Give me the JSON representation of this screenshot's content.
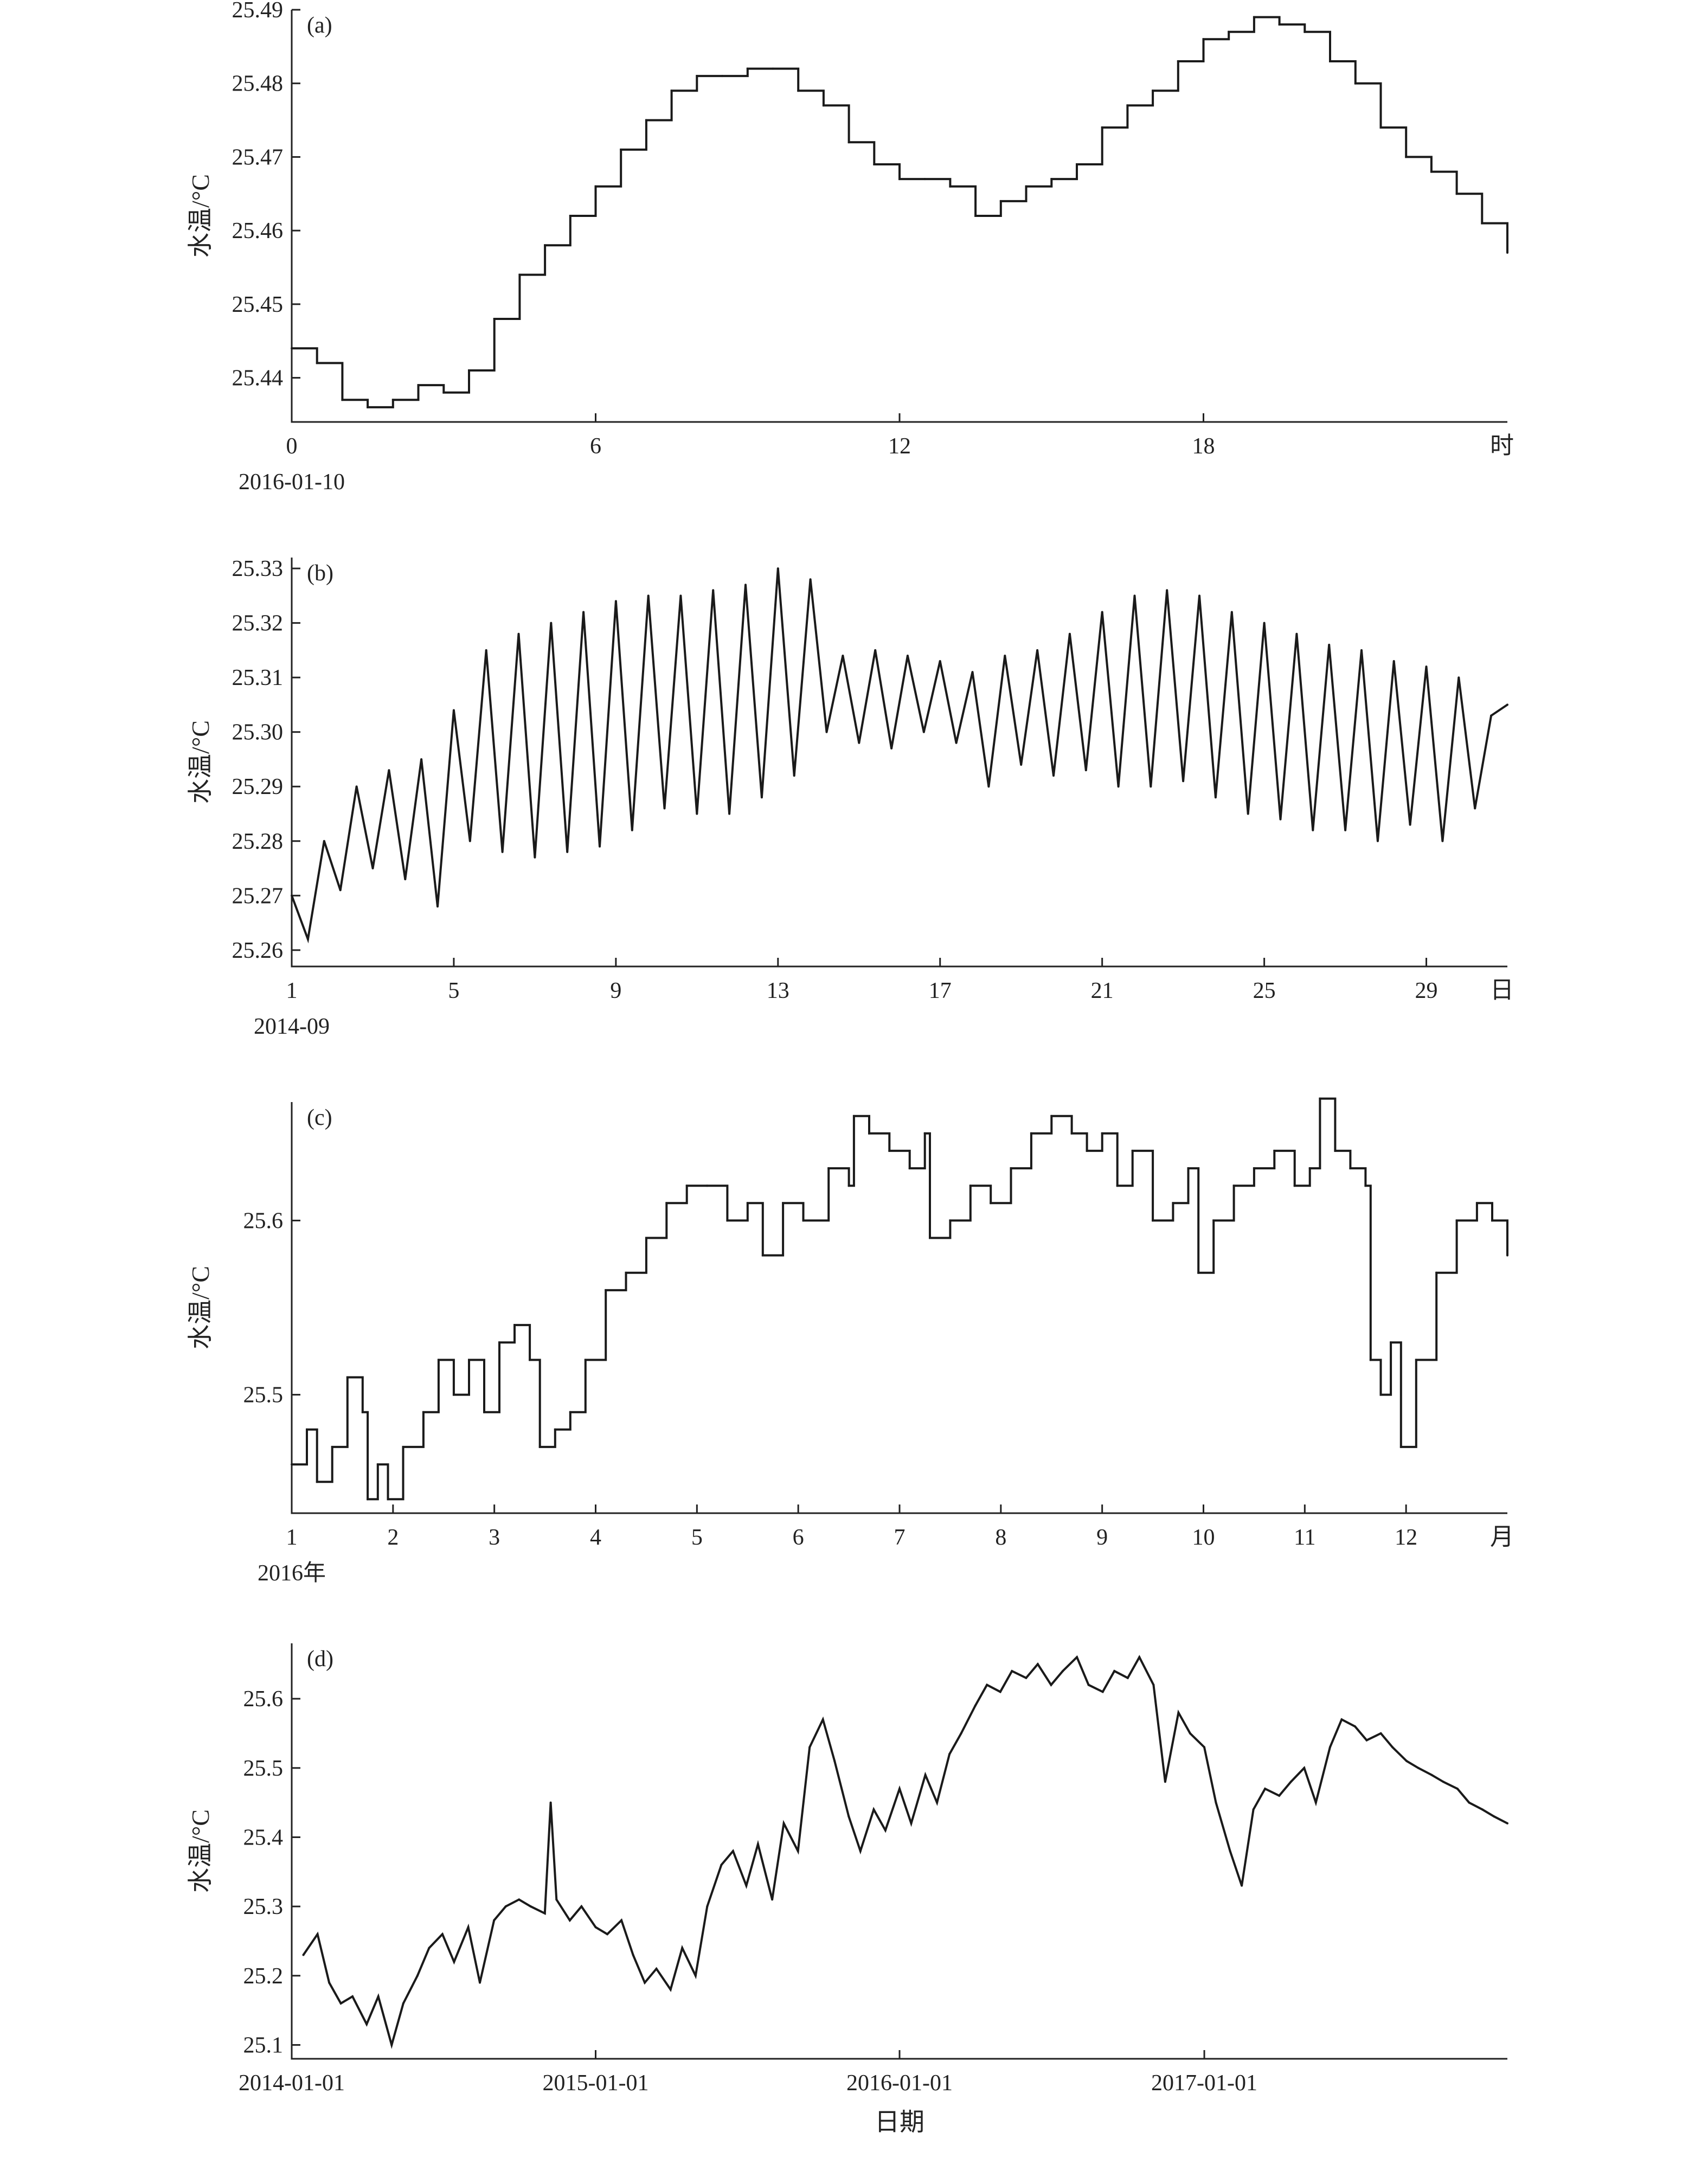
{
  "chart_data": [
    {
      "type": "line",
      "panel_label": "(a)",
      "ylabel": "水温/°C",
      "xunit_label": "时",
      "xsub_label": "2016-01-10",
      "xlim": [
        0,
        24
      ],
      "ylim": [
        25.434,
        25.49
      ],
      "xticks": [
        0,
        6,
        12,
        18
      ],
      "xtick_labels": [
        "0",
        "6",
        "12",
        "18"
      ],
      "yticks": [
        25.44,
        25.45,
        25.46,
        25.47,
        25.48,
        25.49
      ],
      "ytick_labels": [
        "25.44",
        "25.45",
        "25.46",
        "25.47",
        "25.48",
        "25.49"
      ],
      "step": true,
      "x": [
        0,
        0.5,
        1,
        1.5,
        2,
        2.5,
        3,
        3.5,
        4,
        4.5,
        5,
        5.5,
        6,
        6.5,
        7,
        7.5,
        8,
        8.5,
        9,
        9.5,
        10,
        10.5,
        11,
        11.5,
        12,
        12.5,
        13,
        13.5,
        14,
        14.5,
        15,
        15.5,
        16,
        16.5,
        17,
        17.5,
        18,
        18.5,
        19,
        19.5,
        20,
        20.5,
        21,
        21.5,
        22,
        22.5,
        23,
        23.5,
        24
      ],
      "y": [
        25.444,
        25.442,
        25.437,
        25.436,
        25.437,
        25.439,
        25.438,
        25.441,
        25.448,
        25.454,
        25.458,
        25.462,
        25.466,
        25.471,
        25.475,
        25.479,
        25.481,
        25.481,
        25.482,
        25.482,
        25.479,
        25.477,
        25.472,
        25.469,
        25.467,
        25.467,
        25.466,
        25.462,
        25.464,
        25.466,
        25.467,
        25.469,
        25.474,
        25.477,
        25.479,
        25.483,
        25.486,
        25.487,
        25.489,
        25.488,
        25.487,
        25.483,
        25.48,
        25.474,
        25.47,
        25.468,
        25.465,
        25.461,
        25.457
      ]
    },
    {
      "type": "line",
      "panel_label": "(b)",
      "ylabel": "水温/°C",
      "xunit_label": "日",
      "xsub_label": "2014-09",
      "xlim": [
        1,
        31
      ],
      "ylim": [
        25.257,
        25.332
      ],
      "xticks": [
        1,
        5,
        9,
        13,
        17,
        21,
        25,
        29
      ],
      "xtick_labels": [
        "1",
        "5",
        "9",
        "13",
        "17",
        "21",
        "25",
        "29"
      ],
      "yticks": [
        25.26,
        25.27,
        25.28,
        25.29,
        25.3,
        25.31,
        25.32,
        25.33
      ],
      "ytick_labels": [
        "25.26",
        "25.27",
        "25.28",
        "25.29",
        "25.30",
        "25.31",
        "25.32",
        "25.33"
      ],
      "step": false,
      "x": [
        1.0,
        1.4,
        1.8,
        2.2,
        2.6,
        3.0,
        3.4,
        3.8,
        4.2,
        4.6,
        5.0,
        5.4,
        5.8,
        6.2,
        6.6,
        7.0,
        7.4,
        7.8,
        8.2,
        8.6,
        9.0,
        9.4,
        9.8,
        10.2,
        10.6,
        11.0,
        11.4,
        11.8,
        12.2,
        12.6,
        13.0,
        13.4,
        13.8,
        14.2,
        14.6,
        15.0,
        15.4,
        15.8,
        16.2,
        16.6,
        17.0,
        17.4,
        17.8,
        18.2,
        18.6,
        19.0,
        19.4,
        19.8,
        20.2,
        20.6,
        21.0,
        21.4,
        21.8,
        22.2,
        22.6,
        23.0,
        23.4,
        23.8,
        24.2,
        24.6,
        25.0,
        25.4,
        25.8,
        26.2,
        26.6,
        27.0,
        27.4,
        27.8,
        28.2,
        28.6,
        29.0,
        29.4,
        29.8,
        30.2,
        30.6,
        31.0
      ],
      "y": [
        25.27,
        25.262,
        25.28,
        25.271,
        25.29,
        25.275,
        25.293,
        25.273,
        25.295,
        25.268,
        25.304,
        25.28,
        25.315,
        25.278,
        25.318,
        25.277,
        25.32,
        25.278,
        25.322,
        25.279,
        25.324,
        25.282,
        25.325,
        25.286,
        25.325,
        25.285,
        25.326,
        25.285,
        25.327,
        25.288,
        25.33,
        25.292,
        25.328,
        25.3,
        25.314,
        25.298,
        25.315,
        25.297,
        25.314,
        25.3,
        25.313,
        25.298,
        25.311,
        25.29,
        25.314,
        25.294,
        25.315,
        25.292,
        25.318,
        25.293,
        25.322,
        25.29,
        25.325,
        25.29,
        25.326,
        25.291,
        25.325,
        25.288,
        25.322,
        25.285,
        25.32,
        25.284,
        25.318,
        25.282,
        25.316,
        25.282,
        25.315,
        25.28,
        25.313,
        25.283,
        25.312,
        25.28,
        25.31,
        25.286,
        25.303,
        25.305
      ]
    },
    {
      "type": "line",
      "panel_label": "(c)",
      "ylabel": "水温/°C",
      "xunit_label": "月",
      "xsub_label": "2016年",
      "xlim": [
        1,
        13
      ],
      "ylim": [
        25.432,
        25.668
      ],
      "xticks": [
        1,
        2,
        3,
        4,
        5,
        6,
        7,
        8,
        9,
        10,
        11,
        12
      ],
      "xtick_labels": [
        "1",
        "2",
        "3",
        "4",
        "5",
        "6",
        "7",
        "8",
        "9",
        "10",
        "11",
        "12"
      ],
      "yticks": [
        25.5,
        25.6
      ],
      "ytick_labels": [
        "25.5",
        "25.6"
      ],
      "step": true,
      "x": [
        1.0,
        1.15,
        1.25,
        1.4,
        1.55,
        1.7,
        1.75,
        1.85,
        1.95,
        2.1,
        2.3,
        2.45,
        2.6,
        2.75,
        2.9,
        3.05,
        3.2,
        3.35,
        3.45,
        3.6,
        3.75,
        3.9,
        4.1,
        4.3,
        4.5,
        4.7,
        4.9,
        5.1,
        5.3,
        5.5,
        5.65,
        5.85,
        6.05,
        6.3,
        6.5,
        6.55,
        6.7,
        6.9,
        7.1,
        7.25,
        7.3,
        7.5,
        7.7,
        7.9,
        8.1,
        8.3,
        8.5,
        8.7,
        8.85,
        9.0,
        9.15,
        9.3,
        9.5,
        9.7,
        9.85,
        9.95,
        10.1,
        10.3,
        10.5,
        10.7,
        10.9,
        11.05,
        11.15,
        11.3,
        11.45,
        11.6,
        11.65,
        11.75,
        11.85,
        11.95,
        12.1,
        12.3,
        12.5,
        12.7,
        12.85,
        13.0
      ],
      "y": [
        25.46,
        25.48,
        25.45,
        25.47,
        25.51,
        25.49,
        25.44,
        25.46,
        25.44,
        25.47,
        25.49,
        25.52,
        25.5,
        25.52,
        25.49,
        25.53,
        25.54,
        25.52,
        25.47,
        25.48,
        25.49,
        25.52,
        25.56,
        25.57,
        25.59,
        25.61,
        25.62,
        25.62,
        25.6,
        25.61,
        25.58,
        25.61,
        25.6,
        25.63,
        25.62,
        25.66,
        25.65,
        25.64,
        25.63,
        25.65,
        25.59,
        25.6,
        25.62,
        25.61,
        25.63,
        25.65,
        25.66,
        25.65,
        25.64,
        25.65,
        25.62,
        25.64,
        25.6,
        25.61,
        25.63,
        25.57,
        25.6,
        25.62,
        25.63,
        25.64,
        25.62,
        25.63,
        25.67,
        25.64,
        25.63,
        25.62,
        25.52,
        25.5,
        25.53,
        25.47,
        25.52,
        25.57,
        25.6,
        25.61,
        25.6,
        25.58
      ]
    },
    {
      "type": "line",
      "panel_label": "(d)",
      "ylabel": "水温/°C",
      "xlabel": "日期",
      "xlim": [
        "2014-01-01",
        "2017-12-31"
      ],
      "ylim": [
        25.08,
        25.68
      ],
      "xticks": [
        "2014-01-01",
        "2015-01-01",
        "2016-01-01",
        "2017-01-01"
      ],
      "xtick_labels": [
        "2014-01-01",
        "2015-01-01",
        "2016-01-01",
        "2017-01-01"
      ],
      "yticks": [
        25.1,
        25.2,
        25.3,
        25.4,
        25.5,
        25.6
      ],
      "ytick_labels": [
        "25.1",
        "25.2",
        "25.3",
        "25.4",
        "25.5",
        "25.6"
      ],
      "step": false,
      "x": [
        "2014-01-15",
        "2014-02-01",
        "2014-02-15",
        "2014-03-01",
        "2014-03-15",
        "2014-04-01",
        "2014-04-15",
        "2014-05-01",
        "2014-05-15",
        "2014-06-01",
        "2014-06-15",
        "2014-07-01",
        "2014-07-15",
        "2014-08-01",
        "2014-08-15",
        "2014-09-01",
        "2014-09-15",
        "2014-10-01",
        "2014-10-15",
        "2014-11-01",
        "2014-11-08",
        "2014-11-15",
        "2014-12-01",
        "2014-12-15",
        "2015-01-01",
        "2015-01-15",
        "2015-02-01",
        "2015-02-15",
        "2015-03-01",
        "2015-03-15",
        "2015-04-01",
        "2015-04-15",
        "2015-05-01",
        "2015-05-15",
        "2015-06-01",
        "2015-06-15",
        "2015-07-01",
        "2015-07-15",
        "2015-08-01",
        "2015-08-15",
        "2015-09-01",
        "2015-09-15",
        "2015-10-01",
        "2015-10-15",
        "2015-11-01",
        "2015-11-15",
        "2015-12-01",
        "2015-12-15",
        "2016-01-01",
        "2016-01-15",
        "2016-02-01",
        "2016-02-15",
        "2016-03-01",
        "2016-03-15",
        "2016-04-01",
        "2016-04-15",
        "2016-05-01",
        "2016-05-15",
        "2016-06-01",
        "2016-06-15",
        "2016-07-01",
        "2016-07-15",
        "2016-08-01",
        "2016-08-15",
        "2016-09-01",
        "2016-09-15",
        "2016-10-01",
        "2016-10-15",
        "2016-11-01",
        "2016-11-15",
        "2016-12-01",
        "2016-12-15",
        "2017-01-01",
        "2017-01-15",
        "2017-02-01",
        "2017-02-15",
        "2017-03-01",
        "2017-03-15",
        "2017-04-01",
        "2017-04-15",
        "2017-05-01",
        "2017-05-15",
        "2017-06-01",
        "2017-06-15",
        "2017-07-01",
        "2017-07-15",
        "2017-08-01",
        "2017-08-15",
        "2017-09-01",
        "2017-09-15",
        "2017-10-01",
        "2017-10-15",
        "2017-11-01",
        "2017-11-15",
        "2017-12-01",
        "2017-12-15",
        "2017-12-31"
      ],
      "y": [
        25.23,
        25.26,
        25.19,
        25.16,
        25.17,
        25.13,
        25.17,
        25.1,
        25.16,
        25.2,
        25.24,
        25.26,
        25.22,
        25.27,
        25.19,
        25.28,
        25.3,
        25.31,
        25.3,
        25.29,
        25.45,
        25.31,
        25.28,
        25.3,
        25.27,
        25.26,
        25.28,
        25.23,
        25.19,
        25.21,
        25.18,
        25.24,
        25.2,
        25.3,
        25.36,
        25.38,
        25.33,
        25.39,
        25.31,
        25.42,
        25.38,
        25.53,
        25.57,
        25.51,
        25.43,
        25.38,
        25.44,
        25.41,
        25.47,
        25.42,
        25.49,
        25.45,
        25.52,
        25.55,
        25.59,
        25.62,
        25.61,
        25.64,
        25.63,
        25.65,
        25.62,
        25.64,
        25.66,
        25.62,
        25.61,
        25.64,
        25.63,
        25.66,
        25.62,
        25.48,
        25.58,
        25.55,
        25.53,
        25.45,
        25.38,
        25.33,
        25.44,
        25.47,
        25.46,
        25.48,
        25.5,
        25.45,
        25.53,
        25.57,
        25.56,
        25.54,
        25.55,
        25.53,
        25.51,
        25.5,
        25.49,
        25.48,
        25.47,
        25.45,
        25.44,
        25.43,
        25.42
      ]
    }
  ]
}
